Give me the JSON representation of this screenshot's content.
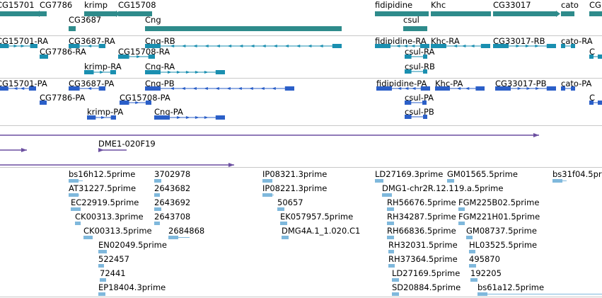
{
  "colors": {
    "gene": "#2e8b8b",
    "transcript": "#1a8fb0",
    "protein": "#2b5fc8",
    "clone": "#6b4fa0",
    "est": "#7fb8dc",
    "separator": "#c8c8c8"
  },
  "tracks": {
    "genes": {
      "features": [
        {
          "label": "CG15701",
          "strand": "none"
        },
        {
          "label": "CG7786",
          "strand": "minus"
        },
        {
          "label": "krimp",
          "strand": "plus"
        },
        {
          "label": "CG15708",
          "strand": "none"
        },
        {
          "label": "CG3687",
          "strand": "none"
        },
        {
          "label": "Cng",
          "strand": "none"
        },
        {
          "label": "fidipidine",
          "strand": "none"
        },
        {
          "label": "Khc",
          "strand": "none"
        },
        {
          "label": "CG33017",
          "strand": "plus"
        },
        {
          "label": "cato",
          "strand": "none"
        },
        {
          "label": "CG",
          "strand": "none"
        },
        {
          "label": "csul",
          "strand": "none"
        }
      ]
    },
    "transcripts": {
      "features": [
        {
          "label": "CG15701-RA",
          "strand": "plus"
        },
        {
          "label": "CG3687-RA",
          "strand": "none"
        },
        {
          "label": "Cng-RB",
          "strand": "minus"
        },
        {
          "label": "fidipidine-RA",
          "strand": "minus"
        },
        {
          "label": "Khc-RA",
          "strand": "minus"
        },
        {
          "label": "CG33017-RB",
          "strand": "plus"
        },
        {
          "label": "cato-RA",
          "strand": "none"
        },
        {
          "label": "CG7786-RA",
          "strand": "none"
        },
        {
          "label": "CG15708-RA",
          "strand": "plus"
        },
        {
          "label": "csul-RA",
          "strand": "minus"
        },
        {
          "label": "krimp-RA",
          "strand": "plus"
        },
        {
          "label": "Cng-RA",
          "strand": "plus"
        },
        {
          "label": "csul-RB",
          "strand": "minus"
        },
        {
          "label": "C",
          "strand": "none"
        }
      ]
    },
    "proteins": {
      "features": [
        {
          "label": "CG15701-PA",
          "strand": "none"
        },
        {
          "label": "CG3687-PA",
          "strand": "none"
        },
        {
          "label": "Cng-PB",
          "strand": "minus"
        },
        {
          "label": "fidipidine-PA",
          "strand": "minus"
        },
        {
          "label": "Khc-PA",
          "strand": "minus"
        },
        {
          "label": "CG33017-PB",
          "strand": "plus"
        },
        {
          "label": "cato-PA",
          "strand": "none"
        },
        {
          "label": "CG7786-PA",
          "strand": "minus"
        },
        {
          "label": "CG15708-PA",
          "strand": "plus"
        },
        {
          "label": "csul-PA",
          "strand": "minus"
        },
        {
          "label": "krimp-PA",
          "strand": "plus"
        },
        {
          "label": "Cng-PA",
          "strand": "plus"
        },
        {
          "label": "csul-PB",
          "strand": "minus"
        },
        {
          "label": "C",
          "strand": "none"
        }
      ]
    },
    "clones": {
      "features": [
        {
          "label": "",
          "strand": "plus"
        },
        {
          "label": "",
          "strand": "plus"
        },
        {
          "label": "DME1-020F19",
          "strand": "minus"
        },
        {
          "label": "",
          "strand": "plus"
        }
      ]
    },
    "ests": {
      "features": [
        {
          "label": "bs16h12.5prime"
        },
        {
          "label": "AT31227.5prime"
        },
        {
          "label": "EC22919.5prime"
        },
        {
          "label": "CK00313.3prime"
        },
        {
          "label": "CK00313.5prime"
        },
        {
          "label": "EN02049.5prime"
        },
        {
          "label": "522457"
        },
        {
          "label": "72441"
        },
        {
          "label": "EP18404.3prime"
        },
        {
          "label": "3702978"
        },
        {
          "label": "2643682"
        },
        {
          "label": "2643692"
        },
        {
          "label": "2643708"
        },
        {
          "label": "2684868"
        },
        {
          "label": "IP08321.3prime"
        },
        {
          "label": "IP08221.3prime"
        },
        {
          "label": "50657"
        },
        {
          "label": "EK057957.5prime"
        },
        {
          "label": "DMG4A.1_1.020.C1"
        },
        {
          "label": "LD27169.3prime"
        },
        {
          "label": "DMG1-chr2R.12.119.a.5prime"
        },
        {
          "label": "RH56676.5prime"
        },
        {
          "label": "RH34287.5prime"
        },
        {
          "label": "RH66836.5prime"
        },
        {
          "label": "RH32031.5prime"
        },
        {
          "label": "RH37364.5prime"
        },
        {
          "label": "LD27169.5prime"
        },
        {
          "label": "SD20884.5prime"
        },
        {
          "label": "GM01565.5prime"
        },
        {
          "label": "FGM225B02.5prime"
        },
        {
          "label": "FGM221H01.5prime"
        },
        {
          "label": "GM08737.5prime"
        },
        {
          "label": "HL03525.5prime"
        },
        {
          "label": "495870"
        },
        {
          "label": "192205"
        },
        {
          "label": "bs61a12.5prime"
        },
        {
          "label": "bs31f04.5prime"
        }
      ]
    }
  }
}
